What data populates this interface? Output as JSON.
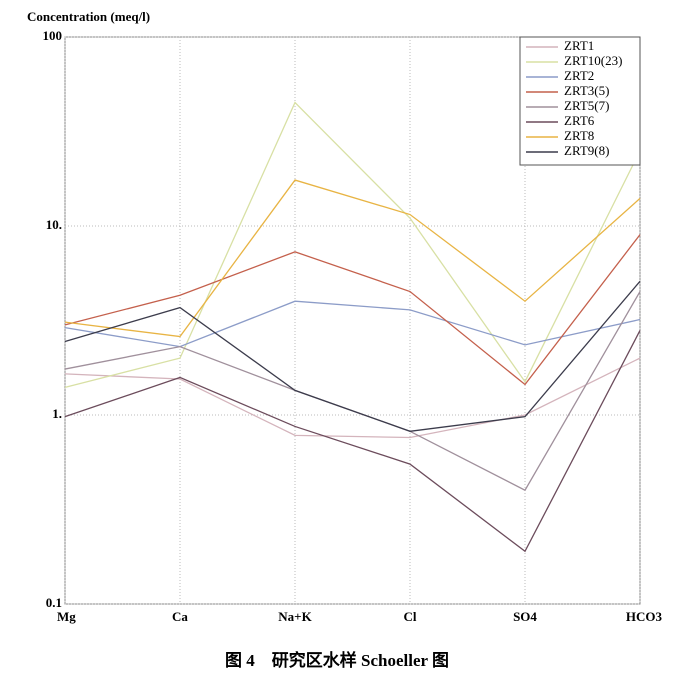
{
  "chart_data": {
    "type": "line",
    "ylabel": "Concentration (meq/l)",
    "caption": "图 4　研究区水样 Schoeller 图",
    "categories": [
      "Mg",
      "Ca",
      "Na+K",
      "Cl",
      "SO4",
      "HCO3"
    ],
    "log_y": true,
    "grid": true,
    "legend": "top-right",
    "ylim": [
      0.1,
      100
    ],
    "yticks": [
      0.1,
      {
        "value": 1,
        "label": "1."
      },
      {
        "value": 10,
        "label": "10."
      },
      100
    ],
    "series": [
      {
        "name": "ZRT1",
        "color": "#d4b4bc",
        "values": [
          1.65,
          1.55,
          0.78,
          0.76,
          1.0,
          2.0
        ]
      },
      {
        "name": "ZRT10(23)",
        "color": "#d8e0a4",
        "values": [
          1.4,
          2.0,
          45,
          11,
          1.5,
          25
        ]
      },
      {
        "name": "ZRT2",
        "color": "#8c9cc8",
        "values": [
          2.9,
          2.3,
          4.0,
          3.6,
          2.35,
          3.2
        ]
      },
      {
        "name": "ZRT3(5)",
        "color": "#c4604c",
        "values": [
          3.0,
          4.3,
          7.3,
          4.5,
          1.45,
          9
        ]
      },
      {
        "name": "ZRT5(7)",
        "color": "#a0909c",
        "values": [
          1.75,
          2.3,
          1.35,
          0.82,
          0.4,
          4.5
        ]
      },
      {
        "name": "ZRT6",
        "color": "#6c4c5c",
        "values": [
          0.98,
          1.58,
          0.87,
          0.55,
          0.19,
          2.8
        ]
      },
      {
        "name": "ZRT8",
        "color": "#e8b444",
        "values": [
          3.1,
          2.6,
          17.5,
          11.5,
          4.0,
          14
        ]
      },
      {
        "name": "ZRT9(8)",
        "color": "#3c3c4c",
        "values": [
          2.45,
          3.7,
          1.35,
          0.82,
          0.98,
          5.1
        ]
      }
    ]
  }
}
